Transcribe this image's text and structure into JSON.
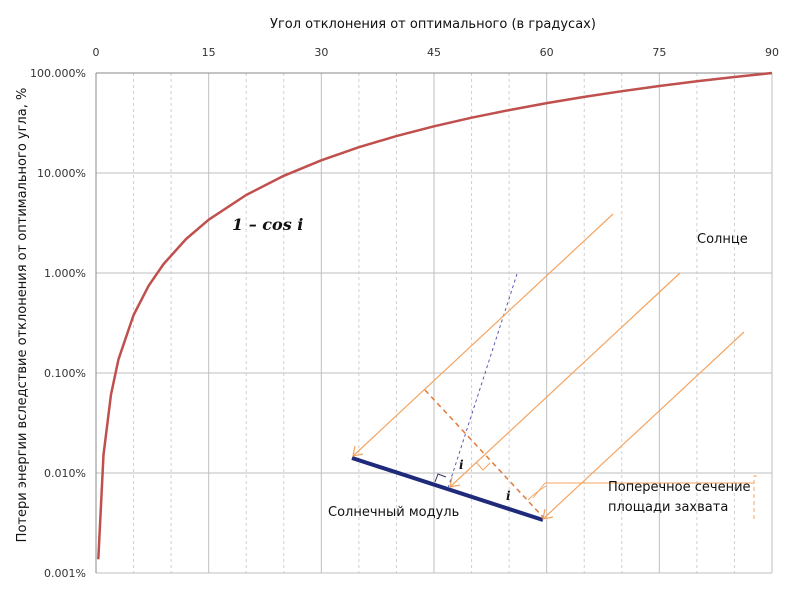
{
  "chart_data": {
    "type": "line",
    "xlabel": "Угол отклонения от оптимального (в градусах)",
    "ylabel": "Потери энергии вследствие отклонения от оптимального угла, %",
    "x_axis_position": "top",
    "xlim": [
      0,
      90
    ],
    "ylim": [
      1e-05,
      1
    ],
    "y_scale": "log",
    "x_ticks": [
      0,
      15,
      30,
      45,
      60,
      75,
      90
    ],
    "x_tick_labels": [
      "0",
      "15",
      "30",
      "45",
      "60",
      "75",
      "90"
    ],
    "y_ticks": [
      1e-05,
      0.0001,
      0.001,
      0.01,
      0.1,
      1
    ],
    "y_tick_labels": [
      "0.001%",
      "0.010%",
      "0.100%",
      "1.000%",
      "10.000%",
      "100.000%"
    ],
    "grid": true,
    "series": [
      {
        "name": "1 – cos i",
        "color": "#C0504D",
        "x": [
          0.3,
          1,
          2,
          3,
          5,
          7,
          9,
          12,
          15,
          20,
          25,
          30,
          35,
          40,
          45,
          50,
          55,
          60,
          65,
          70,
          75,
          80,
          85,
          90
        ],
        "y": [
          1.37e-05,
          0.000152,
          0.000609,
          0.00137,
          0.0038,
          0.00745,
          0.0123,
          0.0219,
          0.0341,
          0.0603,
          0.0937,
          0.134,
          0.181,
          0.234,
          0.293,
          0.357,
          0.426,
          0.5,
          0.577,
          0.658,
          0.741,
          0.826,
          0.913,
          1.0
        ]
      }
    ],
    "annotations": {
      "formula": "1 – cos i",
      "sun_label": "Солнце",
      "module_label": "Солнечный модуль",
      "cross_section_line1": "Поперечное сечение",
      "cross_section_line2": "площади захвата",
      "angle_label": "i"
    },
    "colors": {
      "curve": "#C0504D",
      "sun_rays": "#F4A460",
      "module": "#1F2A7A",
      "normal": "#5A5AB0",
      "grid": "#BFBFBF"
    }
  }
}
